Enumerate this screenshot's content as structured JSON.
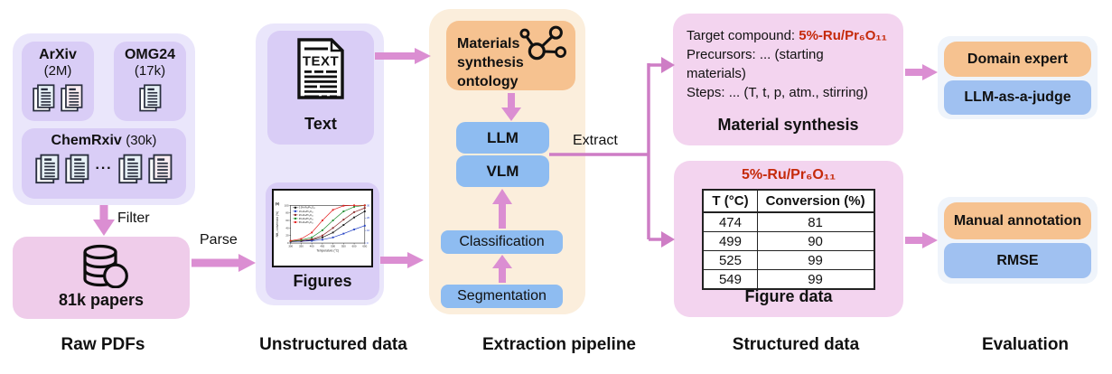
{
  "raw_pdfs": {
    "column_label": "Raw PDFs",
    "arxiv_name": "ArXiv",
    "arxiv_count": "(2M)",
    "omg_name": "OMG24",
    "omg_count": "(17k)",
    "chemrxiv_name": "ChemRxiv",
    "chemrxiv_count": "(30k)",
    "dots": "···",
    "papers_label": "81k papers",
    "filter_label": "Filter"
  },
  "unstructured": {
    "column_label": "Unstructured data",
    "text_label": "Text",
    "text_icon_word": "TEXT",
    "figures_label": "Figures",
    "parse_label": "Parse"
  },
  "pipeline": {
    "column_label": "Extraction pipeline",
    "ontology_line1": "Materials",
    "ontology_line2": "synthesis ontology",
    "llm": "LLM",
    "vlm": "VLM",
    "classification": "Classification",
    "segmentation": "Segmentation",
    "extract_label": "Extract"
  },
  "structured": {
    "column_label": "Structured data",
    "material_synthesis": {
      "target_label": "Target compound: ",
      "compound": "5%-Ru/Pr₆O₁₁",
      "precursors_line1": "Precursors: ... (starting",
      "precursors_line2": "materials)",
      "steps_line": "Steps: ... (T, t, p, atm., stirring)",
      "title": "Material synthesis"
    },
    "figure_data": {
      "compound": "5%-Ru/Pr₆O₁₁",
      "table": {
        "headers": [
          "T (°C)",
          "Conversion (%)"
        ],
        "rows": [
          [
            "474",
            "81"
          ],
          [
            "499",
            "90"
          ],
          [
            "525",
            "99"
          ],
          [
            "549",
            "99"
          ]
        ]
      },
      "title": "Figure data"
    }
  },
  "evaluation": {
    "column_label": "Evaluation",
    "synthesis_evaluators": [
      "Domain expert",
      "LLM-as-a-judge"
    ],
    "figure_evaluators": [
      "Manual annotation",
      "RMSE"
    ]
  },
  "chart_data": {
    "type": "line",
    "title": "",
    "annotation": "(a)",
    "xlabel": "Temperature (°C)",
    "ylabel": "NH₃ conversion (%)",
    "x": [
      300,
      350,
      400,
      450,
      500,
      550,
      600,
      650
    ],
    "ylim": [
      0,
      100
    ],
    "yticks": [
      0,
      20,
      40,
      60,
      80,
      100
    ],
    "right_yticks": [
      0,
      10,
      20,
      30
    ],
    "grid": false,
    "legend_position": "top-left",
    "series": [
      {
        "name": "0.5%-Ru/Pr₆O₁₁",
        "color": "#1a1a1a",
        "values": [
          4,
          5,
          8,
          15,
          28,
          48,
          68,
          84
        ]
      },
      {
        "name": "1%-Ru/Pr₆O₁₁",
        "color": "#2543c4",
        "values": [
          4,
          5,
          6,
          9,
          15,
          25,
          36,
          46
        ]
      },
      {
        "name": "2%-Ru/Pr₆O₁₁",
        "color": "#8a2525",
        "values": [
          5,
          6,
          10,
          20,
          40,
          62,
          82,
          93
        ]
      },
      {
        "name": "3%-Ru/Pr₆O₁₁",
        "color": "#1f8c2f",
        "values": [
          5,
          8,
          15,
          34,
          60,
          84,
          96,
          100
        ]
      },
      {
        "name": "5%-Ru/Pr₆O₁₁",
        "color": "#e32222",
        "values": [
          6,
          11,
          28,
          60,
          88,
          99,
          100,
          100
        ]
      }
    ]
  },
  "colors": {
    "arrow_pink": "#db8ed2",
    "connector_pink": "#ce7dc5",
    "highlight_red": "#c52a0a",
    "lavender_outer": "#eae6fb",
    "purple_inner": "#d9cdf6",
    "pink_box": "#efccea",
    "pink_structured": "#f3d4ef",
    "orange_box": "#f6c290",
    "cream_box": "#fbeedc",
    "blue_box": "#8ebcf1",
    "eval_outer": "#eff4fb"
  }
}
